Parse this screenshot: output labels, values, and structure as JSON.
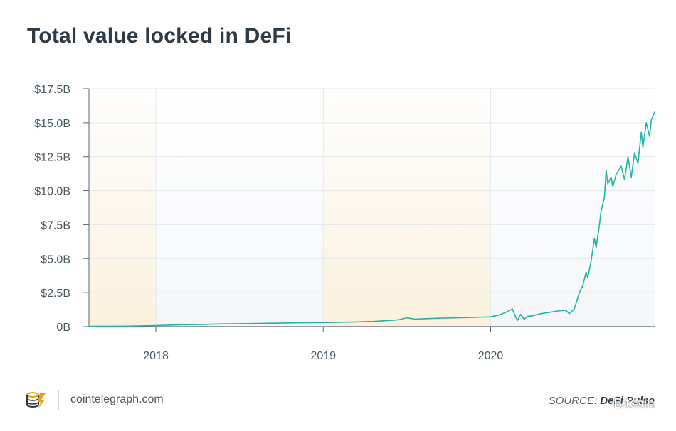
{
  "chart_data": {
    "type": "line",
    "title": "Total value locked in DeFi",
    "xlabel": "",
    "ylabel": "",
    "y_ticks": [
      "0B",
      "$2.5B",
      "$5.0B",
      "$7.5B",
      "$10.0B",
      "$12.5B",
      "$15.0B",
      "$17.5B"
    ],
    "y_tick_values": [
      0,
      2.5,
      5.0,
      7.5,
      10.0,
      12.5,
      15.0,
      17.5
    ],
    "ylim": [
      0,
      17.5
    ],
    "x_ticks": [
      "2018",
      "2019",
      "2020"
    ],
    "x_tick_values": [
      2018.0,
      2019.0,
      2020.0
    ],
    "xlim": [
      2017.6,
      2020.98
    ],
    "grid": true,
    "shaded_bands": [
      [
        2017.6,
        2018.0
      ],
      [
        2019.0,
        2020.0
      ]
    ],
    "series": [
      {
        "name": "",
        "color": "#1fb5a4",
        "x": [
          2017.6,
          2017.8,
          2018.0,
          2018.1,
          2018.25,
          2018.4,
          2018.55,
          2018.7,
          2018.85,
          2019.0,
          2019.15,
          2019.3,
          2019.45,
          2019.5,
          2019.55,
          2019.6,
          2019.7,
          2019.8,
          2019.9,
          2020.0,
          2020.05,
          2020.1,
          2020.13,
          2020.15,
          2020.16,
          2020.18,
          2020.2,
          2020.22,
          2020.25,
          2020.3,
          2020.35,
          2020.4,
          2020.45,
          2020.47,
          2020.5,
          2020.53,
          2020.55,
          2020.57,
          2020.58,
          2020.6,
          2020.62,
          2020.63,
          2020.65,
          2020.66,
          2020.68,
          2020.69,
          2020.7,
          2020.72,
          2020.73,
          2020.75,
          2020.78,
          2020.8,
          2020.82,
          2020.84,
          2020.86,
          2020.88,
          2020.9,
          2020.91,
          2020.93,
          2020.95,
          2020.96,
          2020.98
        ],
        "values": [
          0.02,
          0.03,
          0.08,
          0.12,
          0.15,
          0.2,
          0.22,
          0.25,
          0.28,
          0.3,
          0.33,
          0.38,
          0.5,
          0.65,
          0.55,
          0.58,
          0.62,
          0.65,
          0.68,
          0.72,
          0.85,
          1.1,
          1.3,
          0.7,
          0.45,
          0.9,
          0.55,
          0.75,
          0.8,
          0.95,
          1.05,
          1.15,
          1.2,
          0.95,
          1.3,
          2.5,
          3.0,
          4.0,
          3.6,
          4.8,
          6.5,
          5.8,
          7.5,
          8.5,
          9.5,
          11.5,
          10.5,
          11.0,
          10.3,
          11.2,
          11.8,
          10.8,
          12.5,
          11.0,
          12.8,
          12.0,
          14.3,
          13.2,
          15.0,
          14.0,
          15.2,
          15.8
        ]
      }
    ]
  },
  "footer": {
    "site": "cointelegraph.com",
    "source_prefix": "SOURCE: ",
    "source_name": "DeFi Pulse",
    "watermark": "Bitcoin"
  }
}
